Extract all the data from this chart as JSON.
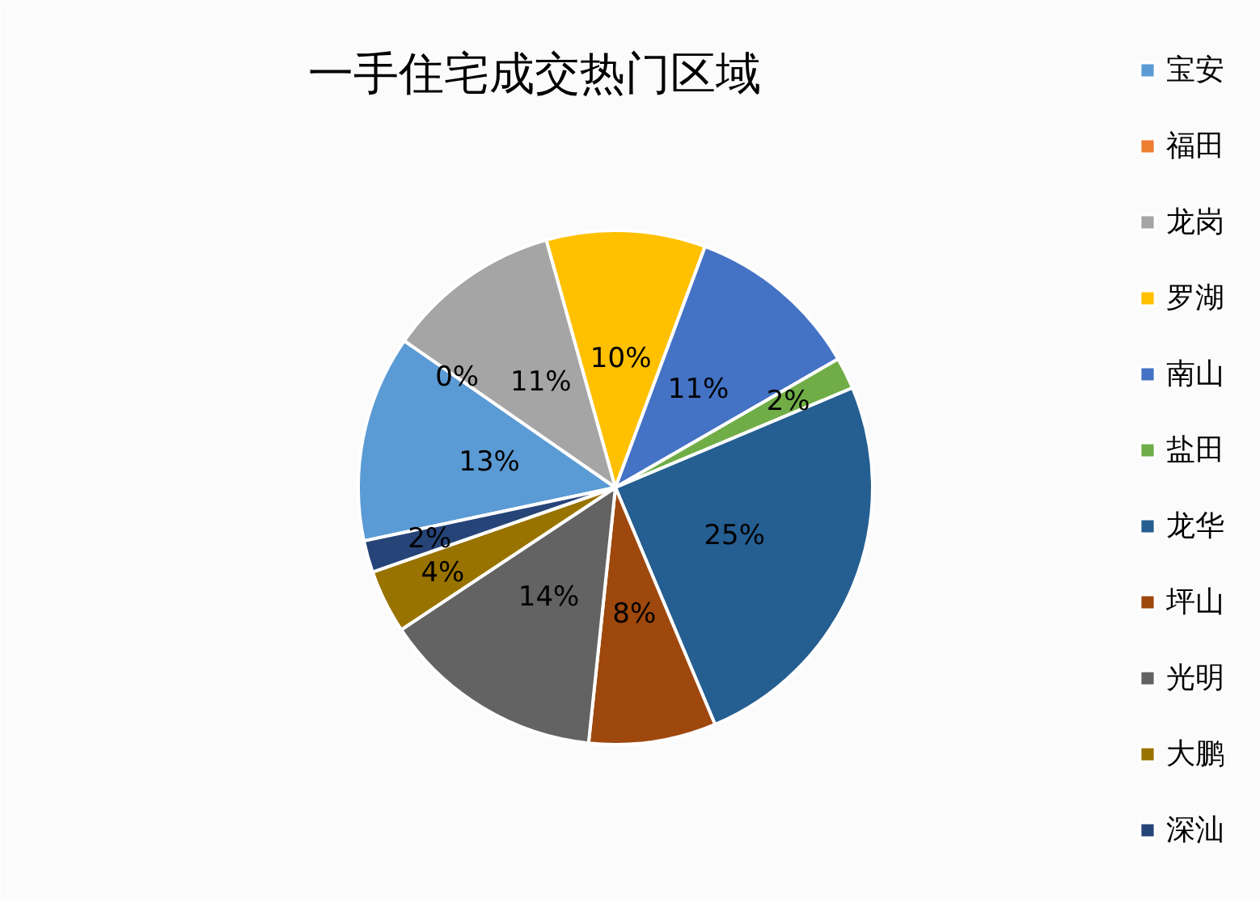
{
  "chart_data": {
    "type": "pie",
    "title": "一手住宅成交热门区域",
    "categories": [
      "宝安",
      "福田",
      "龙岗",
      "罗湖",
      "南山",
      "盐田",
      "龙华",
      "坪山",
      "光明",
      "大鹏",
      "深汕"
    ],
    "values": [
      13,
      0,
      11,
      10,
      11,
      2,
      25,
      8,
      14,
      4,
      2
    ],
    "colors": [
      "#5b9bd5",
      "#ed7d31",
      "#a5a5a5",
      "#ffc000",
      "#4472c4",
      "#70ad47",
      "#255e91",
      "#9e480e",
      "#636363",
      "#997300",
      "#264478"
    ],
    "value_labels": [
      "13%",
      "0%",
      "11%",
      "10%",
      "11%",
      "2%",
      "25%",
      "8%",
      "14%",
      "4%",
      "2%"
    ],
    "legend": "right"
  }
}
